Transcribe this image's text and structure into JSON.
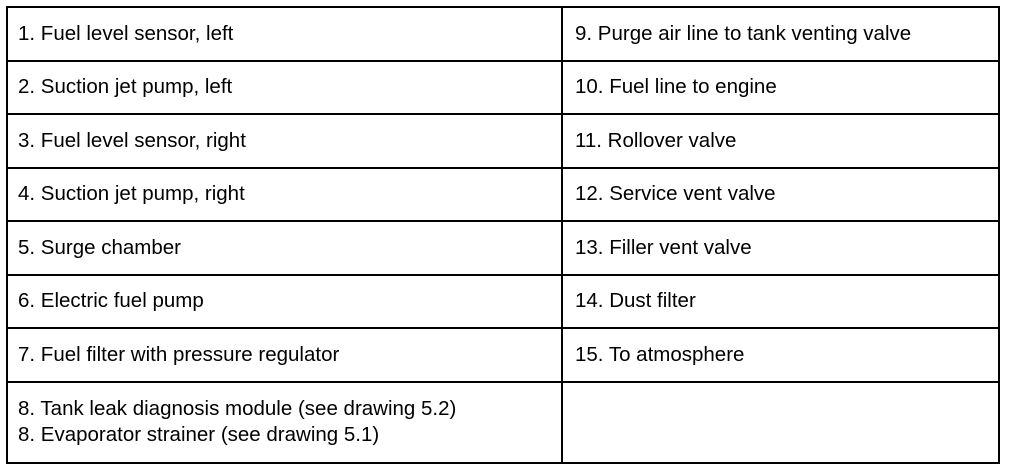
{
  "legend": {
    "left": [
      "1. Fuel level sensor, left",
      "2. Suction jet pump, left",
      "3. Fuel level sensor, right",
      "4. Suction jet pump, right",
      "5. Surge chamber",
      "6. Electric fuel pump",
      "7. Fuel filter with pressure regulator"
    ],
    "left_last": [
      "8. Tank leak diagnosis module (see drawing 5.2)",
      "8. Evaporator strainer (see drawing 5.1)"
    ],
    "right": [
      "9. Purge air line to tank venting valve",
      "10. Fuel line to engine",
      "11. Rollover valve",
      "12. Service vent valve",
      "13. Filler vent valve",
      "14. Dust filter",
      "15. To atmosphere"
    ]
  }
}
